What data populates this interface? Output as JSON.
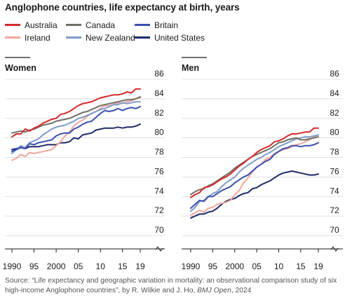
{
  "title": "Anglophone countries, life expectancy at birth, years",
  "legend": [
    {
      "name": "Australia",
      "color": "#d42a2a"
    },
    {
      "name": "Canada",
      "color": "#6f6f66"
    },
    {
      "name": "Britain",
      "color": "#3a4fb0"
    },
    {
      "name": "Ireland",
      "color": "#f2a79a"
    },
    {
      "name": "New Zealand",
      "color": "#7f9ccc"
    },
    {
      "name": "United States",
      "color": "#1f2a6b"
    }
  ],
  "source": {
    "prefix": "Source: “Life expectancy and geographic variation in mortality: an observational comparison study of six high-income Anglophone countries”, by R. Wilkie and J. Ho, ",
    "journal": "BMJ Open",
    "suffix": ", 2024"
  },
  "chart_data": [
    {
      "type": "line",
      "title": "Women",
      "x": [
        1990,
        1991,
        1992,
        1993,
        1994,
        1995,
        1996,
        1997,
        1998,
        1999,
        2000,
        2001,
        2002,
        2003,
        2004,
        2005,
        2006,
        2007,
        2008,
        2009,
        2010,
        2011,
        2012,
        2013,
        2014,
        2015,
        2016,
        2017,
        2018,
        2019
      ],
      "x_tick_labels": [
        "1990",
        "95",
        "2000",
        "05",
        "10",
        "15",
        "19"
      ],
      "x_tick_values": [
        1990,
        1995,
        2000,
        2005,
        2010,
        2015,
        2019
      ],
      "y_ticks": [
        70,
        72,
        74,
        76,
        78,
        80,
        82,
        84,
        86
      ],
      "ylim": [
        69.5,
        86.5
      ],
      "series": [
        {
          "name": "Australia",
          "color": "#d42a2a",
          "values": [
            80.1,
            80.4,
            80.4,
            80.9,
            80.7,
            81.0,
            81.2,
            81.5,
            81.7,
            81.9,
            82.0,
            82.4,
            82.5,
            82.7,
            83.0,
            83.3,
            83.5,
            83.6,
            83.7,
            83.9,
            84.1,
            84.2,
            84.3,
            84.4,
            84.4,
            84.5,
            84.7,
            84.6,
            85.0,
            85.0
          ]
        },
        {
          "name": "Canada",
          "color": "#6f6f66",
          "values": [
            80.5,
            80.6,
            80.7,
            80.6,
            80.8,
            80.9,
            81.1,
            81.3,
            81.4,
            81.5,
            81.7,
            81.8,
            81.9,
            82.0,
            82.2,
            82.4,
            82.6,
            82.7,
            82.9,
            83.1,
            83.3,
            83.4,
            83.5,
            83.6,
            83.7,
            83.8,
            83.9,
            83.9,
            84.0,
            84.2
          ]
        },
        {
          "name": "Britain",
          "color": "#3a4fb0",
          "values": [
            78.6,
            78.8,
            79.0,
            78.9,
            79.4,
            79.3,
            79.5,
            79.6,
            79.7,
            79.8,
            80.2,
            80.4,
            80.5,
            80.5,
            80.9,
            81.1,
            81.4,
            81.6,
            81.7,
            82.1,
            82.5,
            82.8,
            82.7,
            82.8,
            83.0,
            82.8,
            83.0,
            83.1,
            83.0,
            83.2
          ]
        },
        {
          "name": "Ireland",
          "color": "#f2a79a",
          "values": [
            77.7,
            77.9,
            78.3,
            78.1,
            78.5,
            78.4,
            78.5,
            78.6,
            78.7,
            78.8,
            79.2,
            79.6,
            80.2,
            80.6,
            81.2,
            81.6,
            81.8,
            82.2,
            82.5,
            82.7,
            83.0,
            83.3,
            83.3,
            83.4,
            83.6,
            83.5,
            83.7,
            83.8,
            84.0,
            84.1
          ]
        },
        {
          "name": "New Zealand",
          "color": "#7f9ccc",
          "values": [
            78.4,
            78.8,
            79.2,
            79.0,
            79.5,
            79.7,
            79.9,
            80.3,
            80.6,
            80.9,
            81.1,
            81.2,
            81.3,
            81.5,
            81.7,
            82.0,
            82.1,
            82.3,
            82.5,
            82.7,
            82.9,
            83.0,
            83.2,
            83.4,
            83.4,
            83.6,
            83.5,
            83.6,
            83.7,
            83.7
          ]
        },
        {
          "name": "United States",
          "color": "#1f2a6b",
          "values": [
            78.8,
            78.9,
            79.1,
            78.9,
            79.1,
            79.1,
            79.1,
            79.2,
            79.3,
            79.3,
            79.3,
            79.5,
            79.5,
            79.6,
            80.0,
            79.9,
            80.3,
            80.4,
            80.5,
            80.8,
            80.9,
            81.0,
            81.0,
            81.0,
            81.1,
            81.0,
            81.1,
            81.1,
            81.2,
            81.4
          ]
        }
      ]
    },
    {
      "type": "line",
      "title": "Men",
      "x": [
        1990,
        1991,
        1992,
        1993,
        1994,
        1995,
        1996,
        1997,
        1998,
        1999,
        2000,
        2001,
        2002,
        2003,
        2004,
        2005,
        2006,
        2007,
        2008,
        2009,
        2010,
        2011,
        2012,
        2013,
        2014,
        2015,
        2016,
        2017,
        2018,
        2019
      ],
      "x_tick_labels": [
        "1990",
        "95",
        "2000",
        "05",
        "10",
        "15",
        "19"
      ],
      "x_tick_values": [
        1990,
        1995,
        2000,
        2005,
        2010,
        2015,
        2019
      ],
      "y_ticks": [
        70,
        72,
        74,
        76,
        78,
        80,
        82,
        84,
        86
      ],
      "ylim": [
        69.5,
        86.5
      ],
      "series": [
        {
          "name": "Australia",
          "color": "#d42a2a",
          "values": [
            73.9,
            74.2,
            74.4,
            74.9,
            75.0,
            75.2,
            75.5,
            75.8,
            76.0,
            76.3,
            76.7,
            77.1,
            77.4,
            77.8,
            78.1,
            78.5,
            78.8,
            79.0,
            79.2,
            79.6,
            79.7,
            79.9,
            80.2,
            80.4,
            80.4,
            80.5,
            80.6,
            80.6,
            81.0,
            81.0
          ]
        },
        {
          "name": "Canada",
          "color": "#6f6f66",
          "values": [
            74.2,
            74.5,
            74.7,
            74.8,
            75.1,
            75.3,
            75.6,
            75.9,
            76.2,
            76.5,
            76.9,
            77.2,
            77.5,
            77.8,
            78.1,
            78.3,
            78.5,
            78.7,
            78.9,
            79.2,
            79.5,
            79.6,
            79.8,
            79.9,
            80.0,
            79.8,
            79.8,
            79.9,
            80.0,
            80.1
          ]
        },
        {
          "name": "Britain",
          "color": "#3a4fb0",
          "values": [
            72.8,
            73.2,
            73.6,
            73.5,
            74.0,
            74.0,
            74.3,
            74.6,
            74.8,
            75.0,
            75.4,
            75.7,
            76.0,
            76.2,
            76.6,
            77.0,
            77.3,
            77.6,
            77.8,
            78.3,
            78.6,
            78.9,
            79.0,
            79.2,
            79.2,
            79.1,
            79.2,
            79.2,
            79.3,
            79.5
          ]
        },
        {
          "name": "Ireland",
          "color": "#f2a79a",
          "values": [
            72.1,
            72.3,
            72.6,
            72.4,
            72.8,
            72.9,
            73.2,
            73.3,
            73.4,
            73.6,
            74.2,
            74.6,
            75.4,
            75.9,
            76.5,
            77.0,
            77.3,
            77.8,
            78.0,
            78.4,
            78.6,
            78.8,
            78.9,
            79.1,
            79.3,
            79.4,
            79.6,
            79.8,
            80.1,
            80.3
          ]
        },
        {
          "name": "New Zealand",
          "color": "#7f9ccc",
          "values": [
            72.5,
            72.9,
            73.5,
            73.6,
            74.0,
            74.3,
            74.5,
            75.0,
            75.4,
            75.7,
            76.0,
            76.5,
            76.9,
            77.2,
            77.5,
            77.8,
            78.0,
            78.3,
            78.5,
            78.8,
            79.1,
            79.3,
            79.5,
            79.7,
            79.9,
            80.0,
            80.1,
            80.1,
            80.2,
            80.3
          ]
        },
        {
          "name": "United States",
          "color": "#1f2a6b",
          "values": [
            71.8,
            72.0,
            72.2,
            72.2,
            72.4,
            72.5,
            72.8,
            73.2,
            73.5,
            73.7,
            73.8,
            74.1,
            74.3,
            74.4,
            74.8,
            74.9,
            75.2,
            75.4,
            75.6,
            75.9,
            76.2,
            76.4,
            76.5,
            76.6,
            76.5,
            76.4,
            76.3,
            76.2,
            76.2,
            76.3
          ]
        }
      ]
    }
  ]
}
